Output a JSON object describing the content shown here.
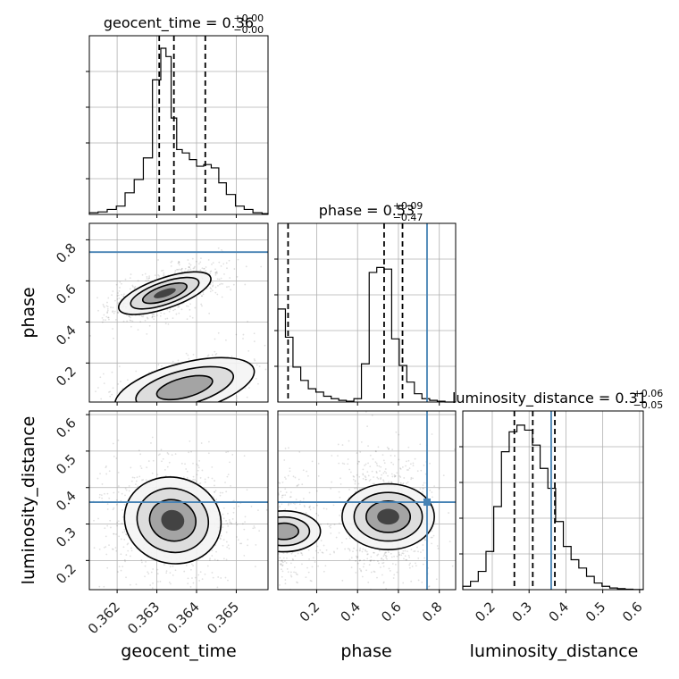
{
  "chart_data": {
    "type": "corner",
    "parameters": [
      "geocent_time",
      "phase",
      "luminosity_distance"
    ],
    "titles": [
      {
        "param": "geocent_time",
        "median": "0.36",
        "plus": "+0.00",
        "minus": "−0.00"
      },
      {
        "param": "phase",
        "median": "0.53",
        "plus": "+0.09",
        "minus": "−0.47"
      },
      {
        "param": "luminosity_distance",
        "median": "0.31",
        "plus": "+0.06",
        "minus": "−0.05"
      }
    ],
    "ranges": {
      "geocent_time": [
        0.3613,
        0.3658
      ],
      "phase": [
        0.01,
        0.88
      ],
      "luminosity_distance": [
        0.12,
        0.61
      ]
    },
    "ticks": {
      "geocent_time": [
        0.362,
        0.363,
        0.364,
        0.365
      ],
      "phase": [
        0.2,
        0.4,
        0.6,
        0.8
      ],
      "luminosity_distance": [
        0.2,
        0.3,
        0.4,
        0.5,
        0.6
      ]
    },
    "tick_labels": {
      "geocent_time": [
        "0.362",
        "0.363",
        "0.364",
        "0.365"
      ],
      "phase": [
        "0.2",
        "0.4",
        "0.6",
        "0.8"
      ],
      "luminosity_distance": [
        "0.2",
        "0.3",
        "0.4",
        "0.5",
        "0.6"
      ]
    },
    "quantiles": {
      "geocent_time": [
        0.36306,
        0.36343,
        0.36422
      ],
      "phase": [
        0.06,
        0.53,
        0.62
      ],
      "luminosity_distance": [
        0.26,
        0.31,
        0.37
      ]
    },
    "truths": {
      "geocent_time": null,
      "phase": 0.74,
      "luminosity_distance": 0.36
    },
    "hist_geocent_time": {
      "edges": [
        0.3613,
        0.36152,
        0.36175,
        0.36198,
        0.3622,
        0.36243,
        0.36266,
        0.36289,
        0.3631,
        0.36323,
        0.36336,
        0.3635,
        0.36364,
        0.36382,
        0.364,
        0.36418,
        0.36437,
        0.36456,
        0.36475,
        0.36498,
        0.3652,
        0.36542,
        0.36565,
        0.3658
      ],
      "counts": [
        0.01,
        0.015,
        0.03,
        0.05,
        0.13,
        0.21,
        0.34,
        0.81,
        1.0,
        0.95,
        0.58,
        0.39,
        0.37,
        0.33,
        0.29,
        0.3,
        0.28,
        0.19,
        0.12,
        0.05,
        0.03,
        0.01,
        0.005
      ]
    },
    "hist_phase": {
      "edges": [
        0.01,
        0.047,
        0.084,
        0.122,
        0.159,
        0.196,
        0.234,
        0.271,
        0.308,
        0.345,
        0.382,
        0.419,
        0.457,
        0.494,
        0.53,
        0.567,
        0.604,
        0.641,
        0.678,
        0.715,
        0.753,
        0.79,
        0.828,
        0.88
      ],
      "counts": [
        0.56,
        0.39,
        0.21,
        0.13,
        0.08,
        0.06,
        0.035,
        0.02,
        0.01,
        0.005,
        0.02,
        0.23,
        0.78,
        0.81,
        0.8,
        0.38,
        0.22,
        0.12,
        0.05,
        0.02,
        0.01,
        0.005,
        0.0
      ]
    },
    "hist_luminosity_distance": {
      "edges": [
        0.12,
        0.141,
        0.162,
        0.183,
        0.204,
        0.225,
        0.246,
        0.267,
        0.288,
        0.309,
        0.33,
        0.351,
        0.372,
        0.393,
        0.414,
        0.435,
        0.456,
        0.477,
        0.498,
        0.519,
        0.54,
        0.561,
        0.582,
        0.61
      ],
      "counts": [
        0.02,
        0.05,
        0.11,
        0.23,
        0.5,
        0.83,
        0.95,
        0.99,
        0.96,
        0.87,
        0.73,
        0.61,
        0.41,
        0.26,
        0.18,
        0.13,
        0.08,
        0.04,
        0.02,
        0.01,
        0.006,
        0.003,
        0.001
      ]
    },
    "modes": {
      "geocent_time_vs_phase": [
        {
          "x": 0.3632,
          "y": 0.54,
          "sx": 0.00042,
          "sy": 0.04,
          "rho": 0.6,
          "w": 1.0
        },
        {
          "x": 0.3637,
          "y": 0.08,
          "sx": 0.00075,
          "sy": 0.07,
          "rho": 0.45,
          "w": 0.32
        }
      ],
      "geocent_time_vs_luminosity_distance": [
        {
          "x": 0.3634,
          "y": 0.31,
          "sx": 0.00052,
          "sy": 0.052,
          "rho": -0.05,
          "w": 1.0
        }
      ],
      "phase_vs_luminosity_distance": [
        {
          "x": 0.55,
          "y": 0.32,
          "sx": 0.07,
          "sy": 0.055,
          "rho": 0.0,
          "w": 1.0
        },
        {
          "x": 0.04,
          "y": 0.28,
          "sx": 0.05,
          "sy": 0.05,
          "rho": 0.0,
          "w": 0.45
        }
      ]
    },
    "colors": {
      "truth": "#4682b4",
      "hist": "#000000",
      "grid": "#b0b0b0"
    },
    "grid": true
  }
}
